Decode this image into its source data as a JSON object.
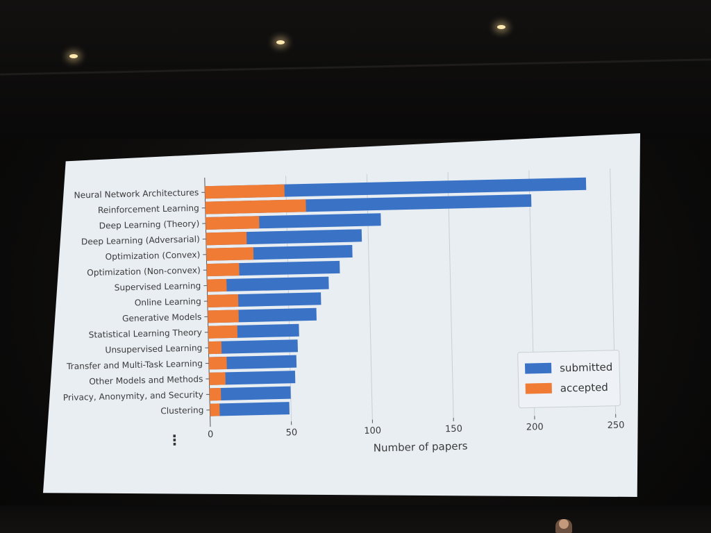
{
  "chart_data": {
    "type": "bar",
    "orientation": "horizontal",
    "stacked": false,
    "categories": [
      "Neural Network Architectures",
      "Reinforcement Learning",
      "Deep Learning (Theory)",
      "Deep Learning (Adversarial)",
      "Optimization (Convex)",
      "Optimization (Non-convex)",
      "Supervised Learning",
      "Online Learning",
      "Generative Models",
      "Statistical Learning Theory",
      "Unsupervised Learning",
      "Transfer and Multi-Task Learning",
      "Other Models and Methods",
      "Privacy, Anonymity, and Security",
      "Clustering"
    ],
    "series": [
      {
        "name": "submitted",
        "color": "#3a73c6",
        "values": [
          235,
          201,
          108,
          96,
          90,
          82,
          75,
          70,
          67,
          56,
          55,
          54,
          53,
          50,
          49
        ]
      },
      {
        "name": "accepted",
        "color": "#ef7b34",
        "values": [
          49,
          62,
          33,
          25,
          29,
          20,
          12,
          19,
          19,
          18,
          8,
          11,
          10,
          7,
          6
        ]
      }
    ],
    "xlabel": "Number of papers",
    "ylabel": "",
    "xlim": [
      0,
      250
    ],
    "xticks": [
      0,
      50,
      100,
      150,
      200,
      250
    ],
    "grid": "vertical",
    "legend_position": "lower-right",
    "continuation_marker": "⋮"
  }
}
